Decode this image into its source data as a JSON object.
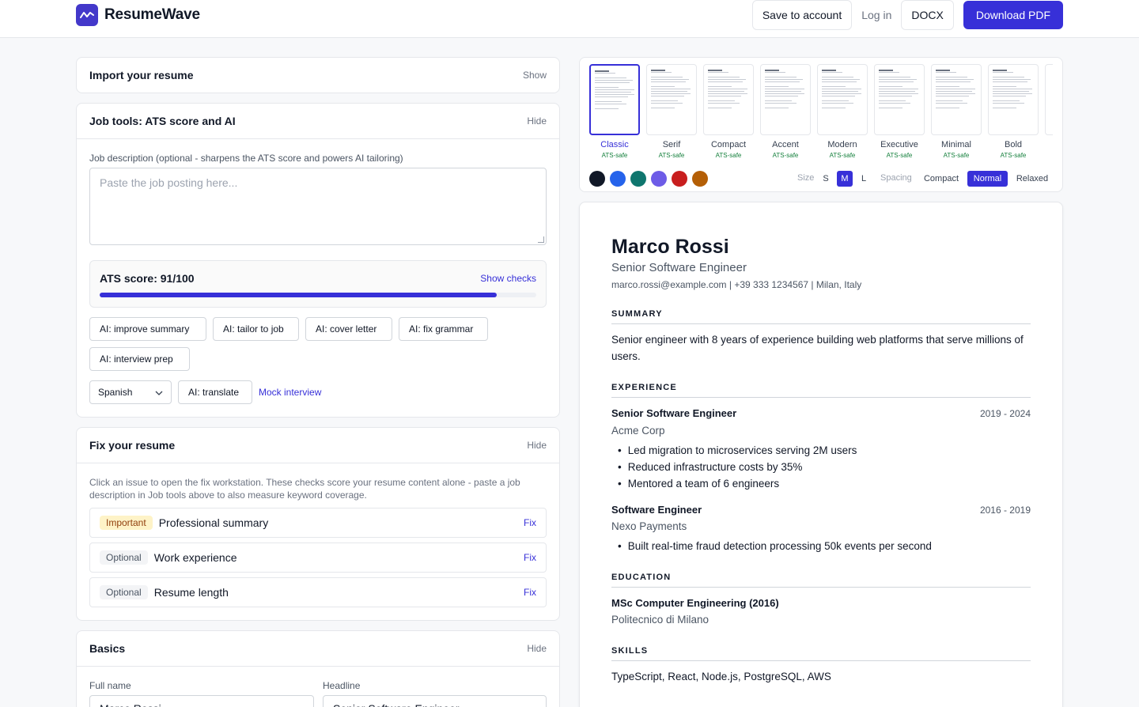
{
  "header": {
    "brand": "ResumeWave",
    "save_label": "Save to account",
    "login_label": "Log in",
    "docx_label": "DOCX",
    "download_label": "Download PDF"
  },
  "import_card": {
    "title": "Import your resume",
    "toggle": "Show"
  },
  "job_tools": {
    "title": "Job tools: ATS score and AI",
    "toggle": "Hide",
    "jd_label": "Job description (optional - sharpens the ATS score and powers AI tailoring)",
    "jd_placeholder": "Paste the job posting here...",
    "ats_title": "ATS score: 91/100",
    "ats_score": 91,
    "ats_max": 100,
    "ats_link": "Show checks",
    "ai_buttons": [
      "AI: improve summary",
      "AI: tailor to job",
      "AI: cover letter",
      "AI: fix grammar",
      "AI: interview prep"
    ],
    "language": "Spanish",
    "translate_label": "AI: translate",
    "mock_label": "Mock interview"
  },
  "fix_card": {
    "title": "Fix your resume",
    "toggle": "Hide",
    "hint": "Click an issue to open the fix workstation. These checks score your resume content alone - paste a job description in Job tools above to also measure keyword coverage.",
    "issues": [
      {
        "badge": "Important",
        "label": "Professional summary",
        "action": "Fix"
      },
      {
        "badge": "Optional",
        "label": "Work experience",
        "action": "Fix"
      },
      {
        "badge": "Optional",
        "label": "Resume length",
        "action": "Fix"
      }
    ]
  },
  "basics_card": {
    "title": "Basics",
    "toggle": "Hide",
    "full_name_label": "Full name",
    "full_name_value": "Marco Rossi",
    "headline_label": "Headline",
    "headline_value": "Senior Software Engineer"
  },
  "templates": {
    "items": [
      {
        "name": "Classic",
        "badge": "ATS-safe"
      },
      {
        "name": "Serif",
        "badge": "ATS-safe"
      },
      {
        "name": "Compact",
        "badge": "ATS-safe"
      },
      {
        "name": "Accent",
        "badge": "ATS-safe"
      },
      {
        "name": "Modern",
        "badge": "ATS-safe"
      },
      {
        "name": "Executive",
        "badge": "ATS-safe"
      },
      {
        "name": "Minimal",
        "badge": "ATS-safe"
      },
      {
        "name": "Bold",
        "badge": "ATS-safe"
      }
    ],
    "selected": "Classic",
    "colors": [
      "#111827",
      "#2563eb",
      "#0f766e",
      "#6d5ce7",
      "#c81e1e",
      "#b45f06"
    ],
    "size_label": "Size",
    "sizes": [
      "S",
      "M",
      "L"
    ],
    "size_selected": "M",
    "spacing_label": "Spacing",
    "spacings": [
      "Compact",
      "Normal",
      "Relaxed"
    ],
    "spacing_selected": "Normal"
  },
  "resume": {
    "name": "Marco Rossi",
    "headline": "Senior Software Engineer",
    "contact": "marco.rossi@example.com | +39 333 1234567 | Milan, Italy",
    "summary_heading": "SUMMARY",
    "summary": "Senior engineer with 8 years of experience building web platforms that serve millions of users.",
    "experience_heading": "EXPERIENCE",
    "jobs": [
      {
        "role": "Senior Software Engineer",
        "dates": "2019 - 2024",
        "company": "Acme Corp",
        "bullets": [
          "Led migration to microservices serving 2M users",
          "Reduced infrastructure costs by 35%",
          "Mentored a team of 6 engineers"
        ]
      },
      {
        "role": "Software Engineer",
        "dates": "2016 - 2019",
        "company": "Nexo Payments",
        "bullets": [
          "Built real-time fraud detection processing 50k events per second"
        ]
      }
    ],
    "education_heading": "EDUCATION",
    "degree": "MSc Computer Engineering (2016)",
    "school": "Politecnico di Milano",
    "skills_heading": "SKILLS",
    "skills": "TypeScript, React, Node.js, PostgreSQL, AWS"
  }
}
